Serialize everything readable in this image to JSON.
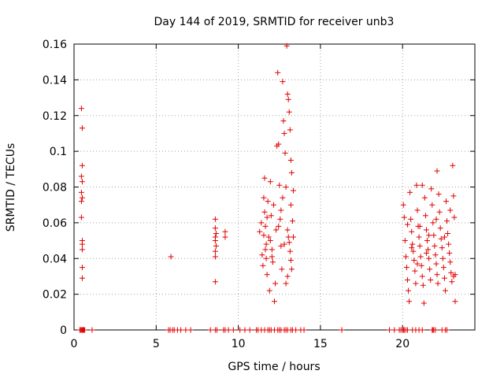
{
  "chart_data": {
    "type": "scatter",
    "title": "Day 144 of 2019, SRMTID for receiver unb3",
    "xlabel": "GPS time / hours",
    "ylabel": "SRMTID / TECUs",
    "xlim": [
      0,
      24.4
    ],
    "ylim": [
      0,
      0.16
    ],
    "x_ticks": [
      0,
      5,
      10,
      15,
      20
    ],
    "x_tick_labels": [
      "0",
      "5",
      "10",
      "15",
      "20"
    ],
    "y_ticks": [
      0,
      0.02,
      0.04,
      0.06,
      0.08,
      0.1,
      0.12,
      0.14,
      0.16
    ],
    "y_tick_labels": [
      "0",
      "0.02",
      "0.04",
      "0.06",
      "0.08",
      "0.1",
      "0.12",
      "0.14",
      "0.16"
    ],
    "grid": true,
    "marker": "+",
    "color": "#e00000",
    "series": [
      {
        "name": "SRMTID",
        "points": [
          [
            0.45,
            0.124
          ],
          [
            0.5,
            0.113
          ],
          [
            0.5,
            0.092
          ],
          [
            0.45,
            0.086
          ],
          [
            0.5,
            0.083
          ],
          [
            0.45,
            0.077
          ],
          [
            0.45,
            0.072
          ],
          [
            0.5,
            0.074
          ],
          [
            0.45,
            0.063
          ],
          [
            0.5,
            0.05
          ],
          [
            0.5,
            0.048
          ],
          [
            0.5,
            0.045
          ],
          [
            0.5,
            0.035
          ],
          [
            0.5,
            0.029
          ],
          [
            5.9,
            0.041
          ],
          [
            8.6,
            0.062
          ],
          [
            8.6,
            0.057
          ],
          [
            8.65,
            0.054
          ],
          [
            8.6,
            0.052
          ],
          [
            8.6,
            0.05
          ],
          [
            8.65,
            0.047
          ],
          [
            8.6,
            0.044
          ],
          [
            8.6,
            0.041
          ],
          [
            8.6,
            0.027
          ],
          [
            9.2,
            0.055
          ],
          [
            9.2,
            0.052
          ],
          [
            11.3,
            0.055
          ],
          [
            11.4,
            0.06
          ],
          [
            11.45,
            0.042
          ],
          [
            11.5,
            0.036
          ],
          [
            11.55,
            0.074
          ],
          [
            11.6,
            0.085
          ],
          [
            11.6,
            0.066
          ],
          [
            11.65,
            0.058
          ],
          [
            11.7,
            0.048
          ],
          [
            11.7,
            0.04
          ],
          [
            11.75,
            0.031
          ],
          [
            11.8,
            0.072
          ],
          [
            11.85,
            0.052
          ],
          [
            11.9,
            0.022
          ],
          [
            11.95,
            0.083
          ],
          [
            12.0,
            0.064
          ],
          [
            12.05,
            0.045
          ],
          [
            12.1,
            0.038
          ],
          [
            12.15,
            0.07
          ],
          [
            12.2,
            0.016
          ],
          [
            12.25,
            0.026
          ],
          [
            12.3,
            0.056
          ],
          [
            12.35,
            0.103
          ],
          [
            12.4,
            0.144
          ],
          [
            12.45,
            0.104
          ],
          [
            12.5,
            0.081
          ],
          [
            12.55,
            0.062
          ],
          [
            12.6,
            0.047
          ],
          [
            12.65,
            0.034
          ],
          [
            12.7,
            0.139
          ],
          [
            12.75,
            0.117
          ],
          [
            12.8,
            0.11
          ],
          [
            12.85,
            0.099
          ],
          [
            12.9,
            0.08
          ],
          [
            12.95,
            0.159
          ],
          [
            13.0,
            0.132
          ],
          [
            13.05,
            0.129
          ],
          [
            13.1,
            0.122
          ],
          [
            13.15,
            0.112
          ],
          [
            13.2,
            0.095
          ],
          [
            13.25,
            0.088
          ],
          [
            13.3,
            0.061
          ],
          [
            13.35,
            0.078
          ],
          [
            13.0,
            0.056
          ],
          [
            13.05,
            0.052
          ],
          [
            13.1,
            0.049
          ],
          [
            13.15,
            0.044
          ],
          [
            13.2,
            0.039
          ],
          [
            13.25,
            0.034
          ],
          [
            13.0,
            0.03
          ],
          [
            12.9,
            0.026
          ],
          [
            12.6,
            0.067
          ],
          [
            12.7,
            0.074
          ],
          [
            12.8,
            0.048
          ],
          [
            11.95,
            0.05
          ],
          [
            12.05,
            0.041
          ],
          [
            11.55,
            0.053
          ],
          [
            11.65,
            0.045
          ],
          [
            11.75,
            0.063
          ],
          [
            12.45,
            0.058
          ],
          [
            13.35,
            0.052
          ],
          [
            13.2,
            0.07
          ],
          [
            20.05,
            0.07
          ],
          [
            20.1,
            0.063
          ],
          [
            20.15,
            0.05
          ],
          [
            20.2,
            0.041
          ],
          [
            20.25,
            0.035
          ],
          [
            20.3,
            0.028
          ],
          [
            20.35,
            0.022
          ],
          [
            20.4,
            0.016
          ],
          [
            20.45,
            0.077
          ],
          [
            20.5,
            0.062
          ],
          [
            20.55,
            0.055
          ],
          [
            20.6,
            0.048
          ],
          [
            20.65,
            0.044
          ],
          [
            20.7,
            0.039
          ],
          [
            20.75,
            0.033
          ],
          [
            20.8,
            0.026
          ],
          [
            20.85,
            0.081
          ],
          [
            20.9,
            0.067
          ],
          [
            20.95,
            0.058
          ],
          [
            21.0,
            0.052
          ],
          [
            21.05,
            0.047
          ],
          [
            21.1,
            0.041
          ],
          [
            21.15,
            0.036
          ],
          [
            21.2,
            0.03
          ],
          [
            21.25,
            0.025
          ],
          [
            21.3,
            0.015
          ],
          [
            21.35,
            0.074
          ],
          [
            21.4,
            0.064
          ],
          [
            21.45,
            0.056
          ],
          [
            21.5,
            0.05
          ],
          [
            21.55,
            0.045
          ],
          [
            21.6,
            0.04
          ],
          [
            21.65,
            0.034
          ],
          [
            21.7,
            0.028
          ],
          [
            21.75,
            0.079
          ],
          [
            21.8,
            0.07
          ],
          [
            21.85,
            0.06
          ],
          [
            21.9,
            0.053
          ],
          [
            21.95,
            0.047
          ],
          [
            22.0,
            0.042
          ],
          [
            22.05,
            0.037
          ],
          [
            22.1,
            0.031
          ],
          [
            22.15,
            0.026
          ],
          [
            22.2,
            0.076
          ],
          [
            22.25,
            0.066
          ],
          [
            22.3,
            0.057
          ],
          [
            22.35,
            0.051
          ],
          [
            22.4,
            0.046
          ],
          [
            22.45,
            0.04
          ],
          [
            22.5,
            0.035
          ],
          [
            22.55,
            0.029
          ],
          [
            22.6,
            0.022
          ],
          [
            22.65,
            0.072
          ],
          [
            22.7,
            0.061
          ],
          [
            22.75,
            0.054
          ],
          [
            22.8,
            0.048
          ],
          [
            22.85,
            0.043
          ],
          [
            22.9,
            0.038
          ],
          [
            22.95,
            0.032
          ],
          [
            23.0,
            0.027
          ],
          [
            23.05,
            0.092
          ],
          [
            23.1,
            0.075
          ],
          [
            23.15,
            0.063
          ],
          [
            23.2,
            0.016
          ],
          [
            23.2,
            0.031
          ],
          [
            23.1,
            0.03
          ],
          [
            22.1,
            0.089
          ],
          [
            21.2,
            0.081
          ],
          [
            20.3,
            0.059
          ],
          [
            20.55,
            0.046
          ],
          [
            21.05,
            0.058
          ],
          [
            21.6,
            0.053
          ],
          [
            22.05,
            0.062
          ],
          [
            22.55,
            0.052
          ],
          [
            20.9,
            0.037
          ],
          [
            21.45,
            0.043
          ],
          [
            22.9,
            0.067
          ]
        ]
      }
    ],
    "zero_markers_x": [
      0.35,
      0.4,
      0.45,
      0.5,
      0.55,
      0.6,
      0.65,
      1.1,
      5.75,
      5.85,
      6.0,
      6.1,
      6.3,
      6.5,
      6.8,
      7.1,
      8.3,
      8.6,
      8.7,
      9.1,
      9.2,
      9.4,
      9.7,
      10.1,
      10.4,
      10.7,
      11.1,
      11.2,
      11.4,
      11.6,
      11.8,
      11.9,
      12.0,
      12.2,
      12.4,
      12.5,
      12.6,
      12.8,
      12.9,
      13.0,
      13.2,
      13.3,
      13.5,
      13.8,
      14.0,
      16.3,
      19.2,
      19.5,
      19.8,
      19.9,
      20.0,
      20.05,
      20.1,
      20.2,
      20.3,
      20.6,
      20.8,
      21.0,
      21.2,
      21.8,
      21.85,
      21.9,
      22.0,
      22.4,
      22.6,
      22.7
    ]
  }
}
